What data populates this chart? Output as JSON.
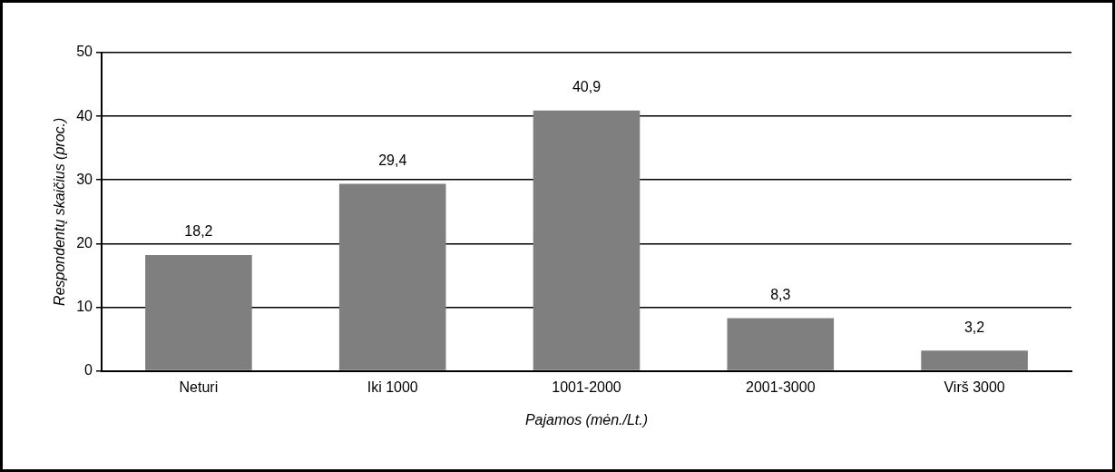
{
  "chart_data": {
    "type": "bar",
    "xlabel": "Pajamos (mėn./Lt.)",
    "ylabel": "Respondentų skaičius (proc.)",
    "categories": [
      "Neturi",
      "Iki 1000",
      "1001-2000",
      "2001-3000",
      "Virš 3000"
    ],
    "values": [
      18.2,
      29.4,
      40.9,
      8.3,
      3.2
    ],
    "value_labels": [
      "18,2",
      "29,4",
      "40,9",
      "8,3",
      "3,2"
    ],
    "color": "#7f7f7f",
    "ylim": [
      0,
      50
    ],
    "yticks": [
      0,
      10,
      20,
      30,
      40,
      50
    ],
    "grid": "y",
    "legend": false
  }
}
